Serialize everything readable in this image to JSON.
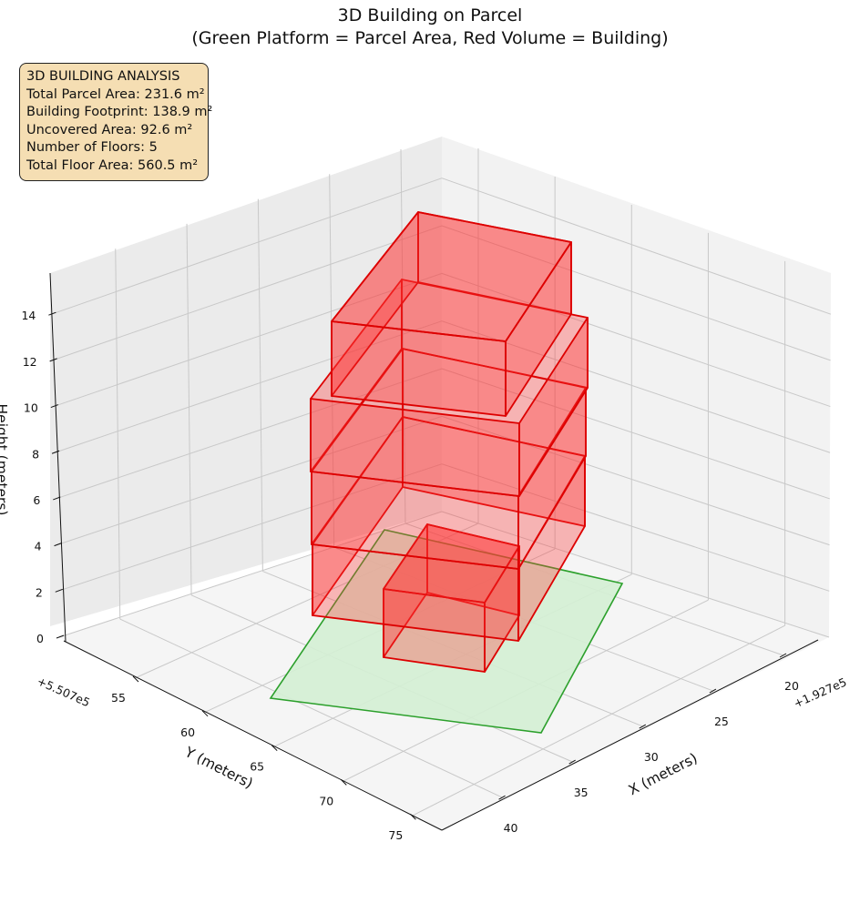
{
  "title_line1": "3D Building on Parcel",
  "title_line2": "(Green Platform = Parcel Area, Red Volume = Building)",
  "info_box": {
    "heading": "3D BUILDING ANALYSIS",
    "lines": [
      "Total Parcel Area: 231.6 m²",
      "Building Footprint: 138.9 m²",
      "Uncovered Area: 92.6 m²",
      "Number of Floors: 5",
      "Total Floor Area: 560.5 m²"
    ]
  },
  "axes": {
    "x_label": "X (meters)",
    "y_label": "Y (meters)",
    "z_label": "Height (meters)",
    "x_offset": "+1.927e5",
    "y_offset": "+5.507e5",
    "x_ticks": [
      "20",
      "25",
      "30",
      "35",
      "40"
    ],
    "y_ticks": [
      "55",
      "60",
      "65",
      "70",
      "75"
    ],
    "z_ticks": [
      "0",
      "2",
      "4",
      "6",
      "8",
      "10",
      "12",
      "14"
    ]
  },
  "colors": {
    "parcel_fill": "#d4f0d4",
    "parcel_edge": "#2ca02c",
    "building_fill": "#ff3333",
    "building_edge": "#dd0000",
    "pane_left": "#ebebeb",
    "pane_right": "#f2f2f2",
    "pane_floor": "#f5f5f5",
    "grid": "#c8c8c8",
    "info_bg": "#f5deb3"
  }
}
